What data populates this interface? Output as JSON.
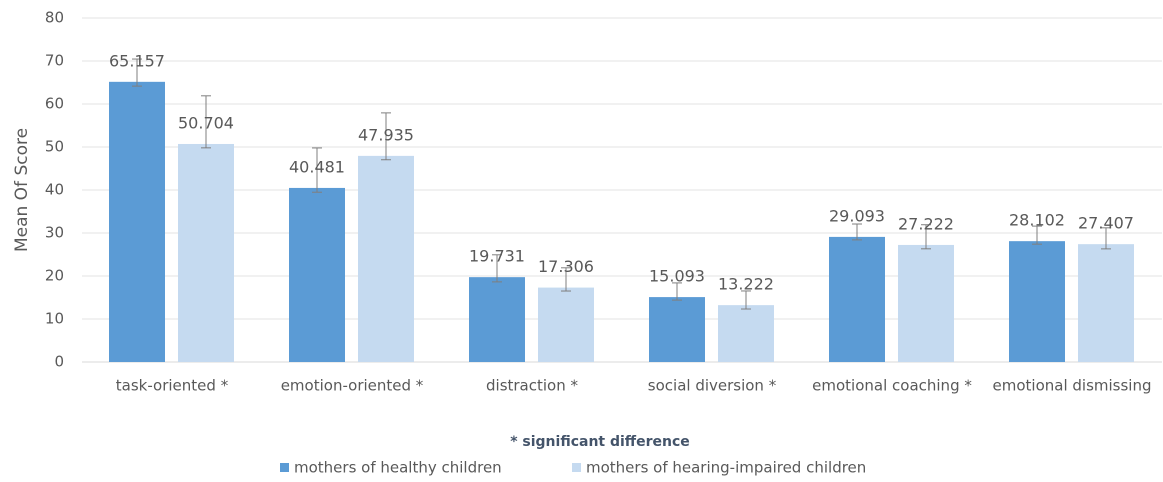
{
  "chart_data": {
    "type": "bar",
    "y_label": "Mean Of Score",
    "annotation": "* significant difference",
    "categories": [
      "task-oriented *",
      "emotion-oriented *",
      "distraction *",
      "social diversion *",
      "emotional coaching *",
      "emotional dismissing"
    ],
    "series": [
      {
        "name": "mothers of healthy children",
        "color": "#5b9bd5",
        "values": [
          65.157,
          40.481,
          19.731,
          15.093,
          29.093,
          28.102
        ],
        "errors_upper": [
          5.3,
          9.3,
          5.2,
          3.3,
          3.0,
          3.5
        ],
        "errors_lower": [
          1.0,
          1.0,
          1.1,
          0.7,
          0.7,
          0.7
        ]
      },
      {
        "name": "mothers of hearing-impaired children",
        "color": "#c5daf0",
        "values": [
          50.704,
          47.935,
          17.306,
          13.222,
          27.222,
          27.407
        ],
        "errors_upper": [
          11.2,
          10.0,
          4.6,
          3.3,
          4.7,
          3.8
        ],
        "errors_lower": [
          0.9,
          0.9,
          0.8,
          0.9,
          0.9,
          1.1
        ]
      }
    ],
    "ylim": [
      0,
      80
    ],
    "yticks": [
      0,
      10,
      20,
      30,
      40,
      50,
      60,
      70,
      80
    ],
    "grid": true,
    "legend": "bottom"
  }
}
